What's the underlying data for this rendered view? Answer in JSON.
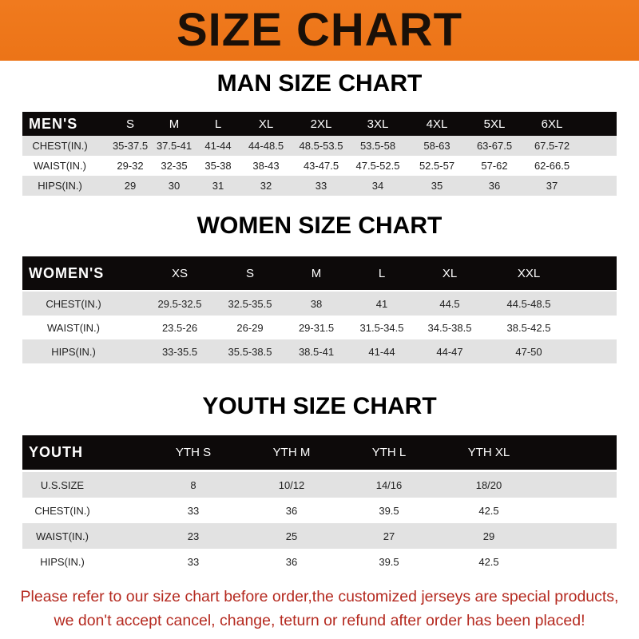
{
  "banner": {
    "title": "SIZE CHART",
    "color": "#ef7a1d"
  },
  "tables": [
    {
      "title": "MAN SIZE CHART",
      "header": [
        "MEN'S",
        "S",
        "M",
        "L",
        "XL",
        "2XL",
        "3XL",
        "4XL",
        "5XL",
        "6XL"
      ],
      "rows": [
        [
          "CHEST(IN.)",
          "35-37.5",
          "37.5-41",
          "41-44",
          "44-48.5",
          "48.5-53.5",
          "53.5-58",
          "58-63",
          "63-67.5",
          "67.5-72"
        ],
        [
          "WAIST(IN.)",
          "29-32",
          "32-35",
          "35-38",
          "38-43",
          "43-47.5",
          "47.5-52.5",
          "52.5-57",
          "57-62",
          "62-66.5"
        ],
        [
          "HIPS(IN.)",
          "29",
          "30",
          "31",
          "32",
          "33",
          "34",
          "35",
          "36",
          "37"
        ]
      ]
    },
    {
      "title": "WOMEN SIZE CHART",
      "header": [
        "WOMEN'S",
        "XS",
        "S",
        "M",
        "L",
        "XL",
        "XXL"
      ],
      "rows": [
        [
          "CHEST(IN.)",
          "29.5-32.5",
          "32.5-35.5",
          "38",
          "41",
          "44.5",
          "44.5-48.5"
        ],
        [
          "WAIST(IN.)",
          "23.5-26",
          "26-29",
          "29-31.5",
          "31.5-34.5",
          "34.5-38.5",
          "38.5-42.5"
        ],
        [
          "HIPS(IN.)",
          "33-35.5",
          "35.5-38.5",
          "38.5-41",
          "41-44",
          "44-47",
          "47-50"
        ]
      ]
    },
    {
      "title": "YOUTH SIZE CHART",
      "header": [
        "YOUTH",
        "YTH S",
        "YTH M",
        "YTH L",
        "YTH XL"
      ],
      "rows": [
        [
          "U.S.SIZE",
          "8",
          "10/12",
          "14/16",
          "18/20"
        ],
        [
          "CHEST(IN.)",
          "33",
          "36",
          "39.5",
          "42.5"
        ],
        [
          "WAIST(IN.)",
          "23",
          "25",
          "27",
          "29"
        ],
        [
          "HIPS(IN.)",
          "33",
          "36",
          "39.5",
          "42.5"
        ]
      ]
    }
  ],
  "footer": {
    "line1": "Please refer to our size chart before order,the customized jerseys are special products,",
    "line2": "we don't accept cancel, change, teturn or refund after order has been placed!",
    "color": "#b52a20"
  }
}
